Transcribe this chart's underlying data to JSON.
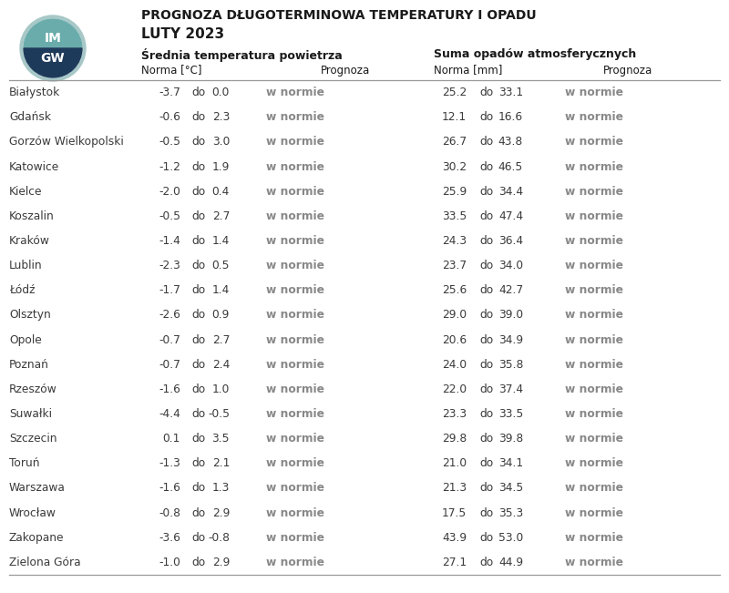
{
  "title1": "PROGNOZA DŁUGOTERMINOWA TEMPERATURY I OPADU",
  "title2": "LUTY 2023",
  "header_temp": "Średniatemperatura powietrza",
  "header_precip": "Suma opadów atmosferycznych",
  "subheader_norma_temp": "Norma [°C]",
  "subheader_prognoza": "Prognoza",
  "subheader_norma_precip": "Norma [mm]",
  "cities": [
    "Białystok",
    "Gdańsk",
    "Gorzów Wielkopolski",
    "Katowice",
    "Kielce",
    "Koszalin",
    "Kraków",
    "Lublin",
    "Łódź",
    "Olsztyn",
    "Opole",
    "Poznań",
    "Rzeszów",
    "Suwałki",
    "Szczecin",
    "Toruń",
    "Warszawa",
    "Wrocław",
    "Zakopane",
    "Zielona Góra"
  ],
  "temp_low": [
    -3.7,
    -0.6,
    -0.5,
    -1.2,
    -2.0,
    -0.5,
    -1.4,
    -2.3,
    -1.7,
    -2.6,
    -0.7,
    -0.7,
    -1.6,
    -4.4,
    0.1,
    -1.3,
    -1.6,
    -0.8,
    -3.6,
    -1.0
  ],
  "temp_high": [
    0.0,
    2.3,
    3.0,
    1.9,
    0.4,
    2.7,
    1.4,
    0.5,
    1.4,
    0.9,
    2.7,
    2.4,
    1.0,
    -0.5,
    3.5,
    2.1,
    1.3,
    2.9,
    -0.8,
    2.9
  ],
  "temp_prognoza": [
    "w normie",
    "w normie",
    "w normie",
    "w normie",
    "w normie",
    "w normie",
    "w normie",
    "w normie",
    "w normie",
    "w normie",
    "w normie",
    "w normie",
    "w normie",
    "w normie",
    "w normie",
    "w normie",
    "w normie",
    "w normie",
    "w normie",
    "w normie"
  ],
  "precip_low": [
    25.2,
    12.1,
    26.7,
    30.2,
    25.9,
    33.5,
    24.3,
    23.7,
    25.6,
    29.0,
    20.6,
    24.0,
    22.0,
    23.3,
    29.8,
    21.0,
    21.3,
    17.5,
    43.9,
    27.1
  ],
  "precip_high": [
    33.1,
    16.6,
    43.8,
    46.5,
    34.4,
    47.4,
    36.4,
    34.0,
    42.7,
    39.0,
    34.9,
    35.8,
    37.4,
    33.5,
    39.8,
    34.1,
    34.5,
    35.3,
    53.0,
    44.9
  ],
  "precip_prognoza": [
    "w normie",
    "w normie",
    "w normie",
    "w normie",
    "w normie",
    "w normie",
    "w normie",
    "w normie",
    "w normie",
    "w normie",
    "w normie",
    "w normie",
    "w normie",
    "w normie",
    "w normie",
    "w normie",
    "w normie",
    "w normie",
    "w normie",
    "w normie"
  ],
  "bg_color": "#ffffff",
  "text_color": "#3a3a3a",
  "norma_color": "#3a3a3a",
  "prognoza_color": "#888888",
  "header_color": "#1a1a1a",
  "line_color": "#999999",
  "logo_outer": "#a8c8c8",
  "logo_teal": "#6aacac",
  "logo_navy": "#1e3a5a"
}
